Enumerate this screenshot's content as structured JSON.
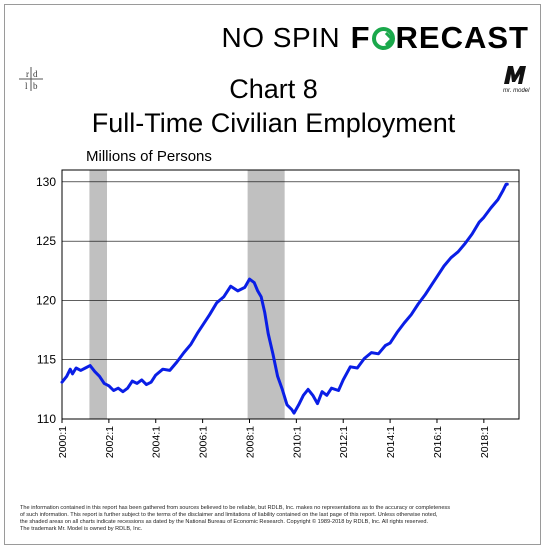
{
  "brand": {
    "part1": "NO SPIN",
    "part2_pre": "F",
    "part2_post": "RECAST"
  },
  "logo_left_text": "rdlb",
  "logo_right_text": "Mr. Model",
  "chart_title_line1": "Chart 8",
  "chart_title_line2": "Full-Time Civilian Employment",
  "colors": {
    "line": "#0a1ee6",
    "recession": "#c0c0c0",
    "grid": "#000000",
    "brand_accent": "#1aa84b"
  },
  "chart_data": {
    "type": "line",
    "ylabel": "Millions of Persons",
    "ylim": [
      110,
      131
    ],
    "yticks": [
      110,
      115,
      120,
      125,
      130
    ],
    "xlim": [
      2000.0,
      2019.5
    ],
    "xtick_values": [
      2000,
      2002,
      2004,
      2006,
      2008,
      2010,
      2012,
      2014,
      2016,
      2018
    ],
    "xtick_labels": [
      "2000:1",
      "2002:1",
      "2004:1",
      "2006:1",
      "2008:1",
      "2010:1",
      "2012:1",
      "2014:1",
      "2016:1",
      "2018:1"
    ],
    "grid": true,
    "recessions": [
      [
        2001.17,
        2001.92
      ],
      [
        2007.92,
        2009.5
      ]
    ],
    "series": [
      {
        "name": "",
        "x": [
          2000.0,
          2000.2,
          2000.35,
          2000.45,
          2000.6,
          2000.8,
          2001.0,
          2001.2,
          2001.4,
          2001.6,
          2001.8,
          2002.0,
          2002.2,
          2002.4,
          2002.6,
          2002.8,
          2003.0,
          2003.2,
          2003.4,
          2003.6,
          2003.8,
          2004.0,
          2004.3,
          2004.6,
          2004.9,
          2005.2,
          2005.5,
          2005.8,
          2006.0,
          2006.3,
          2006.6,
          2006.9,
          2007.2,
          2007.5,
          2007.8,
          2008.0,
          2008.2,
          2008.35,
          2008.5,
          2008.65,
          2008.8,
          2009.0,
          2009.2,
          2009.4,
          2009.6,
          2009.8,
          2009.9,
          2010.1,
          2010.3,
          2010.5,
          2010.7,
          2010.9,
          2011.1,
          2011.3,
          2011.5,
          2011.8,
          2012.0,
          2012.3,
          2012.6,
          2012.9,
          2013.2,
          2013.5,
          2013.8,
          2014.0,
          2014.3,
          2014.6,
          2014.9,
          2015.2,
          2015.5,
          2015.8,
          2016.0,
          2016.3,
          2016.6,
          2016.9,
          2017.2,
          2017.5,
          2017.8,
          2018.0,
          2018.3,
          2018.6,
          2018.8,
          2018.95,
          2019.0
        ],
        "values": [
          113.1,
          113.6,
          114.2,
          113.8,
          114.3,
          114.1,
          114.3,
          114.5,
          114.0,
          113.6,
          113.0,
          112.8,
          112.4,
          112.6,
          112.3,
          112.6,
          113.2,
          113.0,
          113.3,
          112.9,
          113.1,
          113.7,
          114.2,
          114.1,
          114.8,
          115.6,
          116.3,
          117.3,
          117.9,
          118.8,
          119.8,
          120.3,
          121.2,
          120.8,
          121.1,
          121.8,
          121.5,
          120.8,
          120.3,
          119.0,
          117.2,
          115.5,
          113.6,
          112.5,
          111.2,
          110.8,
          110.5,
          111.2,
          112.0,
          112.5,
          112.0,
          111.3,
          112.3,
          112.0,
          112.6,
          112.4,
          113.3,
          114.4,
          114.3,
          115.1,
          115.6,
          115.5,
          116.2,
          116.4,
          117.3,
          118.1,
          118.8,
          119.7,
          120.5,
          121.4,
          122.0,
          122.9,
          123.6,
          124.1,
          124.8,
          125.6,
          126.6,
          127.0,
          127.8,
          128.5,
          129.2,
          129.8,
          129.8
        ]
      }
    ]
  },
  "footer": {
    "line1": "The information contained in this report has been gathered from sources believed to be reliable, but RDLB, Inc. makes no representations as to the accuracy or completeness",
    "line2": "of such information. This report is further subject to the terms of the disclaimer and limitations of liability contained on the last page of this report. Unless otherwise noted,",
    "line3": "the shaded areas on all charts indicate recessions as dated by the National Bureau of Economic Research. Copyright © 1989-2018 by RDLB, Inc. All rights reserved.",
    "line4": "The trademark Mr. Model is owned by RDLB, Inc."
  }
}
